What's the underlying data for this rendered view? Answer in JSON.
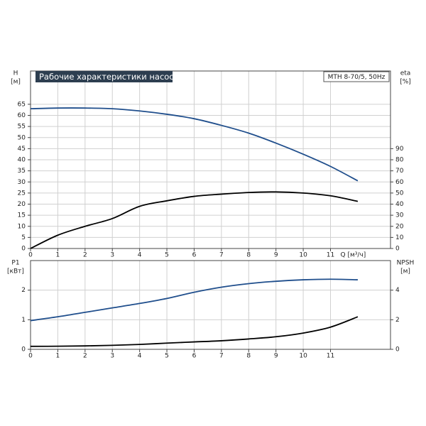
{
  "chart_data": [
    {
      "type": "line",
      "title": "Рабочие характеристики насоса",
      "subtitle": "MTH 8-70/5, 50Hz",
      "ylabel": [
        "H",
        "[м]"
      ],
      "y2label": [
        "eta",
        "[%]"
      ],
      "xlabel": "Q [м³/ч]",
      "x": [
        0,
        1,
        2,
        3,
        4,
        5,
        6,
        7,
        8,
        9,
        10,
        11,
        12
      ],
      "series": [
        {
          "color": "#1f4e8c",
          "values": [
            63,
            63.3,
            63.3,
            63,
            62,
            60.5,
            58.5,
            55.5,
            52,
            47.5,
            42.5,
            37,
            30.5
          ]
        },
        {
          "color": "#000000",
          "axis": "y2",
          "values": [
            0,
            12,
            20,
            27,
            38,
            43,
            47,
            49,
            50.5,
            51,
            50,
            47.5,
            42.5
          ]
        }
      ],
      "xlim": [
        0,
        13.2
      ],
      "xticks": [
        0,
        1,
        2,
        3,
        4,
        5,
        6,
        7,
        8,
        9,
        10,
        11
      ],
      "ylim": [
        0,
        80
      ],
      "yticks": [
        0,
        5,
        10,
        15,
        20,
        25,
        30,
        35,
        40,
        45,
        50,
        55,
        60,
        65
      ],
      "y2lim": [
        0,
        160
      ],
      "y2ticks": [
        0,
        10,
        20,
        30,
        40,
        50,
        60,
        70,
        80,
        90
      ],
      "grid": true
    },
    {
      "type": "line",
      "ylabel": [
        "P1",
        "[кВт]"
      ],
      "y2label": [
        "NPSH",
        "[м]"
      ],
      "x": [
        0,
        1,
        2,
        3,
        4,
        5,
        6,
        7,
        8,
        9,
        10,
        11,
        12
      ],
      "series": [
        {
          "color": "#1f4e8c",
          "values": [
            0.97,
            1.1,
            1.25,
            1.4,
            1.55,
            1.72,
            1.93,
            2.1,
            2.22,
            2.3,
            2.35,
            2.37,
            2.35
          ]
        },
        {
          "color": "#000000",
          "axis": "y2",
          "values": [
            0.2,
            0.21,
            0.23,
            0.27,
            0.33,
            0.42,
            0.5,
            0.58,
            0.7,
            0.85,
            1.1,
            1.5,
            2.2
          ]
        }
      ],
      "xlim": [
        0,
        13.2
      ],
      "xticks": [
        0,
        1,
        2,
        3,
        4,
        5,
        6,
        7,
        8,
        9,
        10,
        11
      ],
      "ylim": [
        0,
        3
      ],
      "yticks": [
        0,
        1,
        2
      ],
      "y2lim": [
        0,
        6
      ],
      "y2ticks": [
        0,
        2,
        4
      ],
      "grid": true
    }
  ]
}
